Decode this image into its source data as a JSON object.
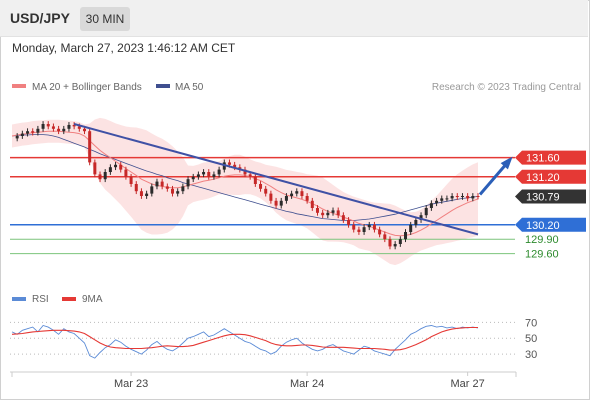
{
  "header": {
    "pair": "USD/JPY",
    "timeframe": "30 MIN"
  },
  "timestamp": "Monday, March 27, 2023 1:46:12 AM CET",
  "credit": "Research © 2023 Trading Central",
  "colors": {
    "ma20": "#f08080",
    "ma50": "#3f4f8f",
    "band": "#fbd9d9",
    "candle_up": "#2b2b2b",
    "candle_down": "#c62828",
    "resistance": "#e53935",
    "pivot": "#2f6fd6",
    "support": "#7cc47c",
    "trend": "#3f51a5",
    "arrow": "#2b5fb8",
    "price_tag": "#333333",
    "rsi": "#5b8bd6",
    "rsi_ma": "#e53935"
  },
  "chart_data": [
    {
      "type": "candlestick",
      "title": "",
      "legend": [
        {
          "label": "MA 20 + Bollinger Bands",
          "color": "#f08080"
        },
        {
          "label": "MA 50",
          "color": "#3f4f8f"
        }
      ],
      "x_ticks": [
        "Mar 23",
        "Mar 24",
        "Mar 27"
      ],
      "ylim": [
        129.3,
        132.55
      ],
      "levels": [
        {
          "label": "131.60",
          "value": 131.6,
          "kind": "resistance"
        },
        {
          "label": "131.20",
          "value": 131.2,
          "kind": "resistance"
        },
        {
          "label": "130.79",
          "value": 130.79,
          "kind": "price"
        },
        {
          "label": "130.20",
          "value": 130.2,
          "kind": "pivot"
        },
        {
          "label": "129.90",
          "value": 129.9,
          "kind": "support"
        },
        {
          "label": "129.60",
          "value": 129.6,
          "kind": "support"
        }
      ],
      "close_series": [
        132.0,
        132.05,
        132.1,
        132.15,
        132.12,
        132.2,
        132.3,
        132.25,
        132.2,
        132.15,
        132.2,
        132.28,
        132.25,
        132.2,
        132.15,
        131.5,
        131.25,
        131.15,
        131.3,
        131.4,
        131.45,
        131.35,
        131.2,
        131.05,
        130.9,
        130.8,
        130.85,
        131.0,
        131.1,
        131.0,
        130.95,
        130.85,
        130.9,
        131.0,
        131.15,
        131.2,
        131.25,
        131.3,
        131.2,
        131.25,
        131.35,
        131.5,
        131.45,
        131.4,
        131.35,
        131.25,
        131.2,
        131.05,
        130.95,
        130.85,
        130.7,
        130.6,
        130.7,
        130.8,
        130.85,
        130.9,
        130.8,
        130.7,
        130.55,
        130.45,
        130.4,
        130.45,
        130.5,
        130.4,
        130.3,
        130.2,
        130.1,
        130.05,
        130.15,
        130.2,
        130.1,
        130.0,
        129.9,
        129.75,
        129.8,
        129.9,
        130.05,
        130.2,
        130.3,
        130.4,
        130.55,
        130.65,
        130.7,
        130.75,
        130.75,
        130.8,
        130.78,
        130.8,
        130.75,
        130.8,
        130.79
      ],
      "ma20": [
        132.05,
        132.07,
        132.09,
        132.1,
        132.12,
        132.13,
        132.14,
        132.15,
        132.15,
        132.15,
        132.14,
        132.13,
        132.12,
        132.1,
        132.05,
        131.95,
        131.85,
        131.75,
        131.67,
        131.6,
        131.52,
        131.45,
        131.37,
        131.3,
        131.23,
        131.15,
        131.1,
        131.05,
        131.02,
        131.0,
        130.98,
        130.97,
        130.97,
        130.99,
        131.02,
        131.05,
        131.08,
        131.11,
        131.13,
        131.15,
        131.18,
        131.21,
        131.23,
        131.24,
        131.24,
        131.23,
        131.2,
        131.16,
        131.12,
        131.06,
        131.0,
        130.93,
        130.87,
        130.82,
        130.79,
        130.76,
        130.73,
        130.69,
        130.64,
        130.59,
        130.53,
        130.48,
        130.44,
        130.4,
        130.36,
        130.32,
        130.28,
        130.23,
        130.2,
        130.17,
        130.13,
        130.09,
        130.05,
        130.01,
        129.98,
        129.97,
        129.98,
        130.0,
        130.04,
        130.09,
        130.15,
        130.22,
        130.29,
        130.36,
        130.43,
        130.5,
        130.56,
        130.61,
        130.66,
        130.7,
        130.74
      ],
      "ma50": [
        132.05,
        132.06,
        132.07,
        132.07,
        132.08,
        132.08,
        132.08,
        132.07,
        132.05,
        132.02,
        131.98,
        131.94,
        131.9,
        131.86,
        131.82,
        131.77,
        131.73,
        131.68,
        131.64,
        131.6,
        131.56,
        131.52,
        131.48,
        131.44,
        131.4,
        131.36,
        131.32,
        131.29,
        131.25,
        131.22,
        131.18,
        131.15,
        131.12,
        131.08,
        131.05,
        131.02,
        130.99,
        130.96,
        130.93,
        130.9,
        130.87,
        130.84,
        130.81,
        130.78,
        130.75,
        130.72,
        130.69,
        130.66,
        130.63,
        130.6,
        130.57,
        130.54,
        130.51,
        130.48,
        130.46,
        130.43,
        130.41,
        130.39,
        130.37,
        130.35,
        130.33,
        130.32,
        130.31,
        130.3,
        130.29,
        130.29,
        130.29,
        130.3,
        130.31,
        130.32,
        130.34,
        130.36,
        130.38,
        130.4,
        130.42,
        130.45,
        130.48,
        130.51,
        130.54,
        130.57,
        130.6,
        130.63,
        130.65,
        130.67,
        130.69,
        130.71,
        130.73,
        130.75,
        130.76,
        130.78,
        130.79
      ],
      "trendline": {
        "start_index": 12,
        "start_value": 132.3,
        "end_index": 90,
        "end_value": 130.0
      }
    },
    {
      "type": "line",
      "legend": [
        {
          "label": "RSI",
          "color": "#5b8bd6"
        },
        {
          "label": "9MA",
          "color": "#e53935"
        }
      ],
      "y_ticks": [
        70,
        50,
        30
      ],
      "ylim": [
        15,
        78
      ],
      "rsi": [
        58,
        55,
        60,
        62,
        64,
        58,
        66,
        64,
        60,
        55,
        62,
        58,
        56,
        50,
        44,
        28,
        25,
        32,
        38,
        42,
        48,
        45,
        40,
        36,
        33,
        30,
        35,
        42,
        46,
        40,
        36,
        34,
        38,
        44,
        50,
        52,
        55,
        58,
        52,
        54,
        58,
        62,
        58,
        54,
        50,
        46,
        44,
        40,
        36,
        34,
        30,
        33,
        40,
        45,
        48,
        50,
        44,
        40,
        36,
        34,
        36,
        40,
        42,
        38,
        34,
        32,
        30,
        35,
        40,
        38,
        34,
        32,
        30,
        28,
        36,
        42,
        48,
        55,
        58,
        62,
        65,
        66,
        64,
        65,
        63,
        64,
        62,
        64,
        63,
        64,
        63
      ],
      "ma9": [
        55,
        55.5,
        56,
        57,
        58,
        58.5,
        59,
        59.5,
        60,
        60,
        60,
        59.5,
        59,
        58,
        56,
        52,
        48,
        44,
        41,
        39,
        38,
        37.5,
        37,
        37,
        37,
        37,
        37.5,
        38,
        39,
        40,
        40.5,
        40,
        39.5,
        39.5,
        40,
        41,
        43,
        45,
        47,
        49,
        51,
        53,
        54.5,
        55,
        55,
        54.5,
        53,
        51,
        49,
        47,
        44,
        42,
        41,
        40.5,
        40.5,
        41,
        41.5,
        41.5,
        41,
        40,
        39,
        38.5,
        38.5,
        38.5,
        38.5,
        38,
        37.5,
        37,
        37,
        37,
        37,
        36.5,
        36,
        35,
        35,
        35.5,
        37,
        39.5,
        42,
        45,
        48,
        52,
        55,
        58,
        60,
        61.5,
        62.5,
        63,
        63.5,
        63.5,
        63.5
      ]
    }
  ]
}
